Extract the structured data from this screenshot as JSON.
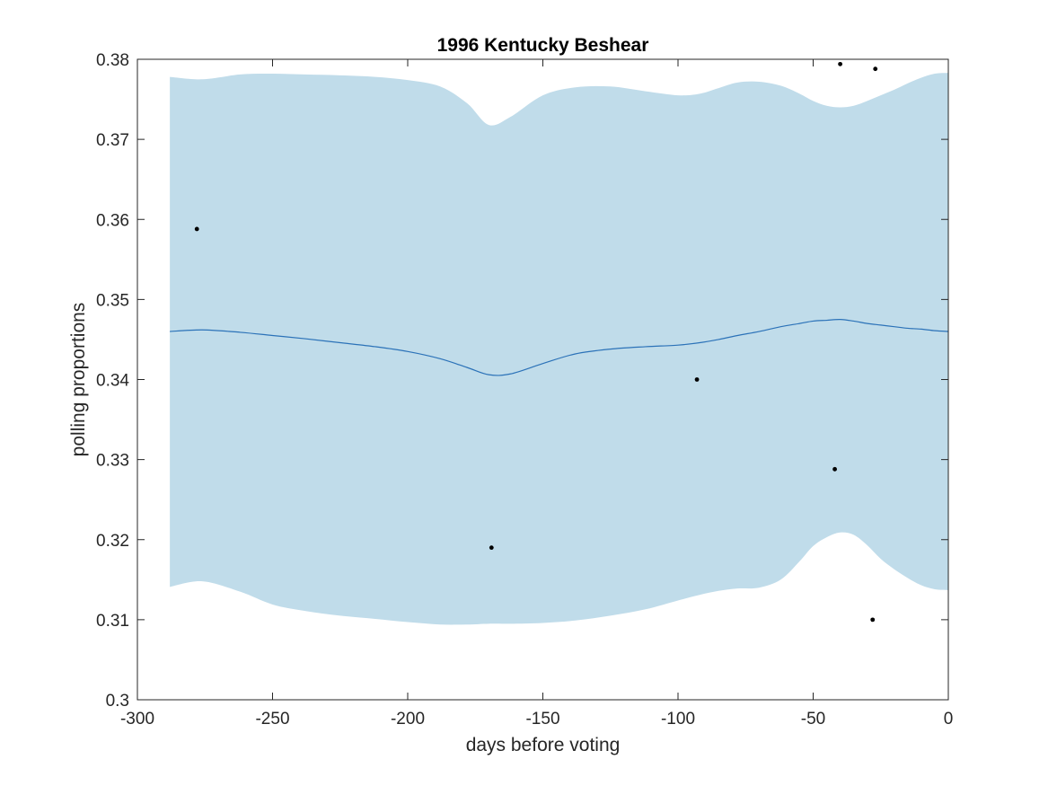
{
  "chart_data": {
    "type": "line",
    "title": "1996 Kentucky Beshear",
    "xlabel": "days before voting",
    "ylabel": "polling proportions",
    "xlim": [
      -300,
      0
    ],
    "ylim": [
      0.3,
      0.38
    ],
    "x_ticks": [
      -300,
      -250,
      -200,
      -150,
      -100,
      -50,
      0
    ],
    "x_tick_labels": [
      "-300",
      "-250",
      "-200",
      "-150",
      "-100",
      "-50",
      "0"
    ],
    "y_ticks": [
      0.3,
      0.31,
      0.32,
      0.33,
      0.34,
      0.35,
      0.36,
      0.37,
      0.38
    ],
    "y_tick_labels": [
      "0.3",
      "0.31",
      "0.32",
      "0.33",
      "0.34",
      "0.35",
      "0.36",
      "0.37",
      "0.38"
    ],
    "grid": false,
    "colors": {
      "band": "#c0dcea",
      "mean_line": "#2b72b8",
      "points": "#000000",
      "axes": "#262626"
    },
    "series": [
      {
        "kind": "band",
        "x": [
          -288,
          -276,
          -262,
          -250,
          -238,
          -225,
          -212,
          -200,
          -188,
          -178,
          -170,
          -162,
          -150,
          -138,
          -125,
          -112,
          -100,
          -92,
          -85,
          -78,
          -70,
          -62,
          -55,
          -50,
          -45,
          -40,
          -35,
          -30,
          -25,
          -20,
          -15,
          -10,
          -5,
          0
        ],
        "upper": [
          0.3778,
          0.3775,
          0.3781,
          0.3782,
          0.3781,
          0.378,
          0.3778,
          0.3774,
          0.3766,
          0.3745,
          0.3718,
          0.3728,
          0.3755,
          0.3765,
          0.3766,
          0.376,
          0.3755,
          0.3757,
          0.3764,
          0.3771,
          0.3772,
          0.3767,
          0.3757,
          0.3748,
          0.3742,
          0.374,
          0.3742,
          0.3748,
          0.3755,
          0.3762,
          0.377,
          0.3777,
          0.3782,
          0.3783
        ],
        "lower": [
          0.3141,
          0.3148,
          0.3135,
          0.3119,
          0.3111,
          0.3105,
          0.3101,
          0.3097,
          0.3094,
          0.3094,
          0.3095,
          0.3095,
          0.3096,
          0.3099,
          0.3105,
          0.3113,
          0.3124,
          0.3131,
          0.3136,
          0.3139,
          0.314,
          0.315,
          0.3173,
          0.3192,
          0.3203,
          0.3209,
          0.3206,
          0.3193,
          0.3176,
          0.3163,
          0.3152,
          0.3143,
          0.3138,
          0.3137
        ]
      },
      {
        "kind": "line",
        "x": [
          -288,
          -276,
          -262,
          -250,
          -238,
          -225,
          -212,
          -200,
          -188,
          -178,
          -170,
          -162,
          -150,
          -138,
          -125,
          -112,
          -100,
          -92,
          -85,
          -78,
          -70,
          -62,
          -55,
          -50,
          -45,
          -40,
          -35,
          -30,
          -25,
          -20,
          -15,
          -10,
          -5,
          0
        ],
        "y": [
          0.346,
          0.3462,
          0.3459,
          0.3455,
          0.3451,
          0.3446,
          0.3441,
          0.3435,
          0.3426,
          0.3415,
          0.3406,
          0.3407,
          0.342,
          0.3432,
          0.3438,
          0.3441,
          0.3443,
          0.3446,
          0.345,
          0.3455,
          0.346,
          0.3466,
          0.347,
          0.3473,
          0.3474,
          0.3475,
          0.3473,
          0.347,
          0.3468,
          0.3466,
          0.3464,
          0.3463,
          0.3461,
          0.346
        ]
      },
      {
        "kind": "scatter",
        "points": [
          {
            "x": -278,
            "y": 0.3588
          },
          {
            "x": -169,
            "y": 0.319
          },
          {
            "x": -93,
            "y": 0.34
          },
          {
            "x": -42,
            "y": 0.3288
          },
          {
            "x": -40,
            "y": 0.3794
          },
          {
            "x": -27,
            "y": 0.3788
          },
          {
            "x": -28,
            "y": 0.31
          }
        ]
      }
    ]
  }
}
